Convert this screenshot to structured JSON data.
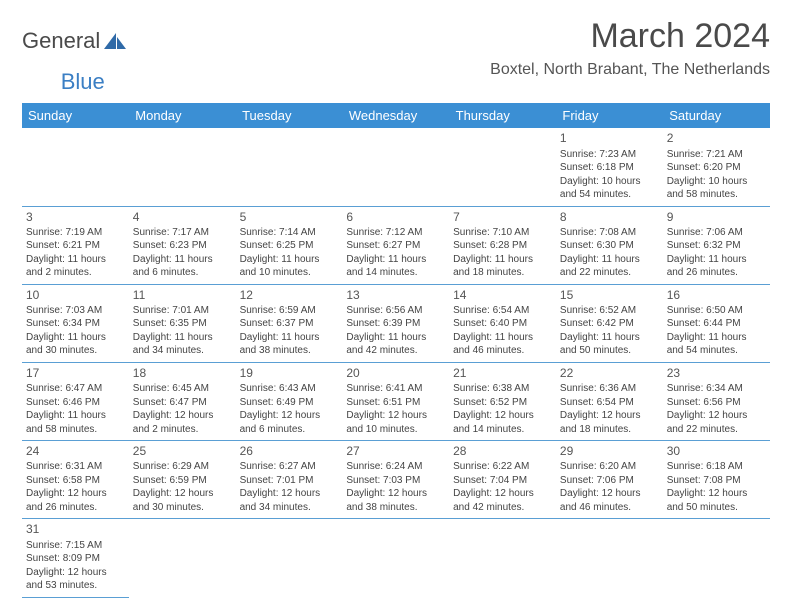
{
  "header": {
    "logo_text_1": "General",
    "logo_text_2": "Blue",
    "month_title": "March 2024",
    "location": "Boxtel, North Brabant, The Netherlands"
  },
  "colors": {
    "header_bg": "#3b8fd4",
    "header_fg": "#ffffff",
    "row_border": "#5a9fd4",
    "text": "#444444",
    "title": "#4a4a4a"
  },
  "calendar": {
    "day_headers": [
      "Sunday",
      "Monday",
      "Tuesday",
      "Wednesday",
      "Thursday",
      "Friday",
      "Saturday"
    ],
    "first_weekday_index": 5,
    "days": [
      {
        "n": 1,
        "sunrise": "7:23 AM",
        "sunset": "6:18 PM",
        "daylight": "10 hours and 54 minutes."
      },
      {
        "n": 2,
        "sunrise": "7:21 AM",
        "sunset": "6:20 PM",
        "daylight": "10 hours and 58 minutes."
      },
      {
        "n": 3,
        "sunrise": "7:19 AM",
        "sunset": "6:21 PM",
        "daylight": "11 hours and 2 minutes."
      },
      {
        "n": 4,
        "sunrise": "7:17 AM",
        "sunset": "6:23 PM",
        "daylight": "11 hours and 6 minutes."
      },
      {
        "n": 5,
        "sunrise": "7:14 AM",
        "sunset": "6:25 PM",
        "daylight": "11 hours and 10 minutes."
      },
      {
        "n": 6,
        "sunrise": "7:12 AM",
        "sunset": "6:27 PM",
        "daylight": "11 hours and 14 minutes."
      },
      {
        "n": 7,
        "sunrise": "7:10 AM",
        "sunset": "6:28 PM",
        "daylight": "11 hours and 18 minutes."
      },
      {
        "n": 8,
        "sunrise": "7:08 AM",
        "sunset": "6:30 PM",
        "daylight": "11 hours and 22 minutes."
      },
      {
        "n": 9,
        "sunrise": "7:06 AM",
        "sunset": "6:32 PM",
        "daylight": "11 hours and 26 minutes."
      },
      {
        "n": 10,
        "sunrise": "7:03 AM",
        "sunset": "6:34 PM",
        "daylight": "11 hours and 30 minutes."
      },
      {
        "n": 11,
        "sunrise": "7:01 AM",
        "sunset": "6:35 PM",
        "daylight": "11 hours and 34 minutes."
      },
      {
        "n": 12,
        "sunrise": "6:59 AM",
        "sunset": "6:37 PM",
        "daylight": "11 hours and 38 minutes."
      },
      {
        "n": 13,
        "sunrise": "6:56 AM",
        "sunset": "6:39 PM",
        "daylight": "11 hours and 42 minutes."
      },
      {
        "n": 14,
        "sunrise": "6:54 AM",
        "sunset": "6:40 PM",
        "daylight": "11 hours and 46 minutes."
      },
      {
        "n": 15,
        "sunrise": "6:52 AM",
        "sunset": "6:42 PM",
        "daylight": "11 hours and 50 minutes."
      },
      {
        "n": 16,
        "sunrise": "6:50 AM",
        "sunset": "6:44 PM",
        "daylight": "11 hours and 54 minutes."
      },
      {
        "n": 17,
        "sunrise": "6:47 AM",
        "sunset": "6:46 PM",
        "daylight": "11 hours and 58 minutes."
      },
      {
        "n": 18,
        "sunrise": "6:45 AM",
        "sunset": "6:47 PM",
        "daylight": "12 hours and 2 minutes."
      },
      {
        "n": 19,
        "sunrise": "6:43 AM",
        "sunset": "6:49 PM",
        "daylight": "12 hours and 6 minutes."
      },
      {
        "n": 20,
        "sunrise": "6:41 AM",
        "sunset": "6:51 PM",
        "daylight": "12 hours and 10 minutes."
      },
      {
        "n": 21,
        "sunrise": "6:38 AM",
        "sunset": "6:52 PM",
        "daylight": "12 hours and 14 minutes."
      },
      {
        "n": 22,
        "sunrise": "6:36 AM",
        "sunset": "6:54 PM",
        "daylight": "12 hours and 18 minutes."
      },
      {
        "n": 23,
        "sunrise": "6:34 AM",
        "sunset": "6:56 PM",
        "daylight": "12 hours and 22 minutes."
      },
      {
        "n": 24,
        "sunrise": "6:31 AM",
        "sunset": "6:58 PM",
        "daylight": "12 hours and 26 minutes."
      },
      {
        "n": 25,
        "sunrise": "6:29 AM",
        "sunset": "6:59 PM",
        "daylight": "12 hours and 30 minutes."
      },
      {
        "n": 26,
        "sunrise": "6:27 AM",
        "sunset": "7:01 PM",
        "daylight": "12 hours and 34 minutes."
      },
      {
        "n": 27,
        "sunrise": "6:24 AM",
        "sunset": "7:03 PM",
        "daylight": "12 hours and 38 minutes."
      },
      {
        "n": 28,
        "sunrise": "6:22 AM",
        "sunset": "7:04 PM",
        "daylight": "12 hours and 42 minutes."
      },
      {
        "n": 29,
        "sunrise": "6:20 AM",
        "sunset": "7:06 PM",
        "daylight": "12 hours and 46 minutes."
      },
      {
        "n": 30,
        "sunrise": "6:18 AM",
        "sunset": "7:08 PM",
        "daylight": "12 hours and 50 minutes."
      },
      {
        "n": 31,
        "sunrise": "7:15 AM",
        "sunset": "8:09 PM",
        "daylight": "12 hours and 53 minutes."
      }
    ]
  }
}
